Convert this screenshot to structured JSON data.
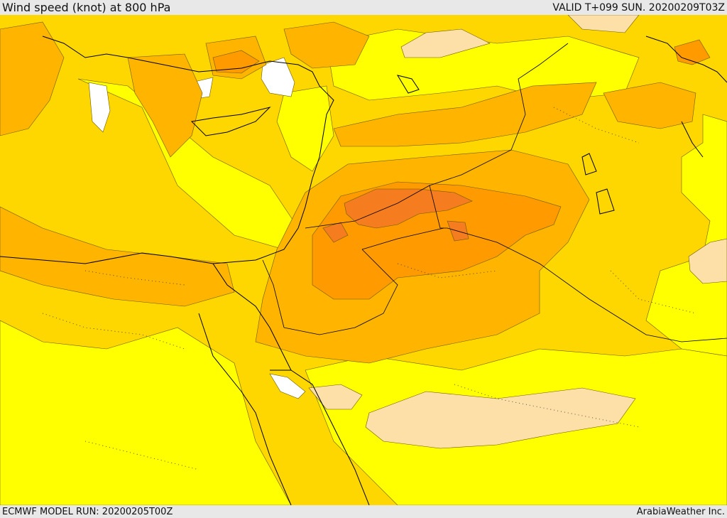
{
  "header": {
    "title": "Wind speed (knot) at 800 hPa",
    "valid": "VALID T+099 SUN. 20200209T03Z"
  },
  "footer": {
    "model_run": "ECMWF MODEL RUN: 20200205T00Z",
    "credit": "ArabiaWeather Inc."
  },
  "palette": {
    "white": "#ffffff",
    "pale": "#fde0a8",
    "yellow": "#ffff00",
    "gold": "#ffd700",
    "amber": "#ffb400",
    "orange": "#ff9a00",
    "dark_orange": "#f57c1f",
    "coast_line": "#000000"
  }
}
